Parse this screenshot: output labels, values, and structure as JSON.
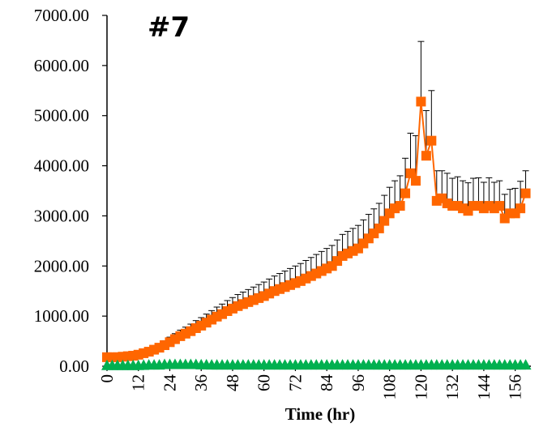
{
  "chart_data": {
    "type": "line",
    "title": "#7",
    "xlabel": "Time (hr)",
    "ylabel": "",
    "xlim": [
      0,
      162
    ],
    "ylim": [
      0,
      7000
    ],
    "y_ticks": [
      "0.00",
      "1000.00",
      "2000.00",
      "3000.00",
      "4000.00",
      "5000.00",
      "6000.00",
      "7000.00"
    ],
    "x_ticks": [
      "0",
      "12",
      "24",
      "36",
      "48",
      "60",
      "72",
      "84",
      "96",
      "108",
      "120",
      "132",
      "144",
      "156"
    ],
    "grid": false,
    "legend": "none",
    "series": [
      {
        "marker": "square",
        "color": "#ff6600",
        "x": [
          0,
          2,
          4,
          6,
          8,
          10,
          12,
          14,
          16,
          18,
          20,
          22,
          24,
          26,
          28,
          30,
          32,
          34,
          36,
          38,
          40,
          42,
          44,
          46,
          48,
          50,
          52,
          54,
          56,
          58,
          60,
          62,
          64,
          66,
          68,
          70,
          72,
          74,
          76,
          78,
          80,
          82,
          84,
          86,
          88,
          90,
          92,
          94,
          96,
          98,
          100,
          102,
          104,
          106,
          108,
          110,
          112,
          114,
          116,
          118,
          120,
          122,
          124,
          126,
          128,
          130,
          132,
          134,
          136,
          138,
          140,
          142,
          144,
          146,
          148,
          150,
          152,
          154,
          156,
          158,
          160
        ],
        "y": [
          180,
          180,
          180,
          190,
          200,
          210,
          230,
          260,
          290,
          330,
          370,
          420,
          480,
          540,
          600,
          650,
          700,
          760,
          810,
          870,
          930,
          990,
          1040,
          1100,
          1150,
          1200,
          1240,
          1280,
          1320,
          1360,
          1400,
          1450,
          1500,
          1540,
          1580,
          1620,
          1660,
          1700,
          1750,
          1800,
          1850,
          1900,
          1950,
          2000,
          2100,
          2200,
          2250,
          2300,
          2350,
          2450,
          2550,
          2650,
          2750,
          2900,
          3050,
          3150,
          3200,
          3450,
          3850,
          3700,
          5280,
          4200,
          4500,
          3300,
          3350,
          3250,
          3200,
          3200,
          3150,
          3100,
          3200,
          3200,
          3150,
          3200,
          3150,
          3200,
          2950,
          3050,
          3050,
          3150,
          3450
        ],
        "error": [
          0,
          0,
          0,
          0,
          0,
          20,
          40,
          50,
          60,
          70,
          80,
          90,
          100,
          110,
          120,
          130,
          140,
          150,
          160,
          170,
          180,
          190,
          200,
          210,
          220,
          230,
          240,
          250,
          260,
          270,
          280,
          290,
          300,
          310,
          320,
          330,
          340,
          350,
          360,
          370,
          380,
          390,
          400,
          410,
          420,
          430,
          440,
          450,
          460,
          470,
          480,
          490,
          500,
          510,
          520,
          550,
          600,
          700,
          800,
          900,
          1200,
          900,
          1000,
          600,
          550,
          600,
          550,
          580,
          550,
          560,
          550,
          560,
          520,
          560,
          520,
          500,
          480,
          480,
          500,
          540,
          450
        ]
      },
      {
        "marker": "triangle",
        "color": "#00b050",
        "x": [
          0,
          2,
          4,
          6,
          8,
          10,
          12,
          14,
          16,
          18,
          20,
          22,
          24,
          26,
          28,
          30,
          32,
          34,
          36,
          38,
          40,
          42,
          44,
          46,
          48,
          50,
          52,
          54,
          56,
          58,
          60,
          62,
          64,
          66,
          68,
          70,
          72,
          74,
          76,
          78,
          80,
          82,
          84,
          86,
          88,
          90,
          92,
          94,
          96,
          98,
          100,
          102,
          104,
          106,
          108,
          110,
          112,
          114,
          116,
          118,
          120,
          122,
          124,
          126,
          128,
          130,
          132,
          134,
          136,
          138,
          140,
          142,
          144,
          146,
          148,
          150,
          152,
          154,
          156,
          158,
          160
        ],
        "y": [
          20,
          20,
          20,
          20,
          20,
          20,
          20,
          25,
          30,
          30,
          30,
          40,
          40,
          40,
          40,
          40,
          40,
          40,
          35,
          35,
          30,
          30,
          30,
          30,
          30,
          30,
          30,
          30,
          30,
          30,
          30,
          30,
          30,
          30,
          30,
          30,
          30,
          30,
          30,
          30,
          30,
          30,
          30,
          30,
          30,
          30,
          30,
          30,
          30,
          30,
          30,
          30,
          30,
          30,
          30,
          30,
          30,
          30,
          30,
          30,
          30,
          30,
          30,
          30,
          30,
          30,
          30,
          30,
          30,
          30,
          30,
          30,
          30,
          30,
          30,
          30,
          30,
          30,
          30,
          30,
          30
        ]
      }
    ]
  }
}
